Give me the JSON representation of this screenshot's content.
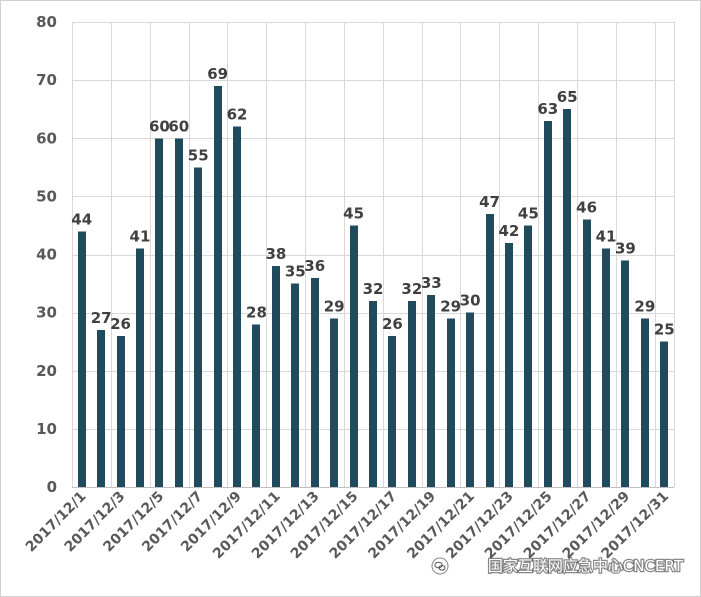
{
  "chart_data": {
    "type": "bar",
    "values": [
      44,
      27,
      26,
      41,
      60,
      60,
      55,
      69,
      62,
      28,
      38,
      35,
      36,
      29,
      45,
      32,
      26,
      32,
      33,
      29,
      30,
      47,
      42,
      45,
      63,
      65,
      46,
      41,
      39,
      29,
      25
    ],
    "x_tick_labels": [
      "2017/12/1",
      "2017/12/3",
      "2017/12/5",
      "2017/12/7",
      "2017/12/9",
      "2017/12/11",
      "2017/12/13",
      "2017/12/15",
      "2017/12/17",
      "2017/12/19",
      "2017/12/21",
      "2017/12/23",
      "2017/12/25",
      "2017/12/27",
      "2017/12/29",
      "2017/12/31"
    ],
    "x_tick_label_step": 2,
    "ylim": [
      0,
      80
    ],
    "y_ticks": [
      0,
      10,
      20,
      30,
      40,
      50,
      60,
      70,
      80
    ],
    "grid": true,
    "legend": "none",
    "data_labels": true,
    "bar_color": "#1f4b5c"
  },
  "watermark": {
    "text": "国家互联网应急中心CNCERT",
    "icon": "wechat-icon"
  }
}
